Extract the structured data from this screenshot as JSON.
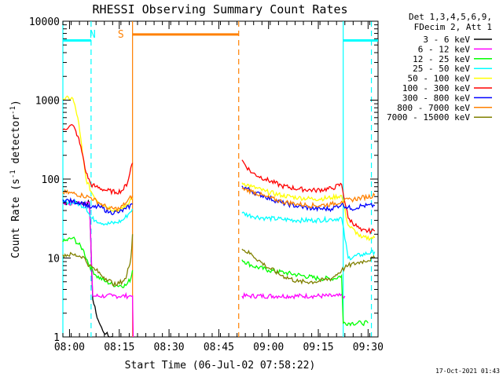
{
  "chart_data": {
    "type": "line",
    "title": "RHESSI Observing Summary Count Rates",
    "xlabel": "Start Time (06-Jul-02 07:58:22)",
    "ylabel": "Count Rate (s",
    "ylabel_sup1": "-1",
    "ylabel_mid": " detector",
    "ylabel_sup2": "-1",
    "ylabel_end": ")",
    "yscale": "log",
    "ylim": [
      1,
      10000
    ],
    "yticks": [
      1,
      10,
      100,
      1000,
      10000
    ],
    "ytick_labels": [
      "1",
      "10",
      "100",
      "1000",
      "10000"
    ],
    "xlim_min": [
      0,
      95
    ],
    "xticks_min": [
      2,
      17,
      32,
      47,
      62,
      77,
      92
    ],
    "xtick_labels": [
      "08:00",
      "08:15",
      "08:30",
      "08:45",
      "09:00",
      "09:15",
      "09:30"
    ],
    "legend_header": [
      "Det 1,3,4,5,6,9,",
      "FDecim 2, Att 1"
    ],
    "series": [
      {
        "name": "3 - 6 keV",
        "color": "#000000",
        "x": [
          0,
          8,
          9,
          10,
          11,
          12,
          13,
          14,
          15
        ],
        "y": [
          50,
          50,
          3,
          2,
          1.5,
          1.2,
          1.1,
          1.0,
          1.0
        ]
      },
      {
        "name": "6 - 12 keV",
        "color": "#ff00ff",
        "x": [
          0,
          8,
          9,
          13,
          15,
          20,
          21,
          21.2,
          54,
          56,
          65,
          75,
          82,
          85
        ],
        "y": [
          50,
          50,
          3.3,
          3.3,
          3.3,
          3.3,
          3.3,
          1.0,
          3.3,
          3.3,
          3.3,
          3.3,
          3.3,
          3.3
        ]
      },
      {
        "name": "12 - 25 keV",
        "color": "#00ff00",
        "x": [
          0,
          3,
          6,
          8,
          10,
          13,
          16,
          19,
          20.5,
          21,
          54,
          57,
          62,
          67,
          72,
          77,
          82,
          84,
          84.5,
          87,
          90,
          92
        ],
        "y": [
          16,
          18,
          13,
          8,
          6,
          5,
          4.5,
          4.5,
          5.5,
          7,
          9.5,
          8,
          7,
          6.5,
          6,
          5.5,
          5.5,
          6,
          1.5,
          1.5,
          1.5,
          1.5
        ]
      },
      {
        "name": "25 - 50 keV",
        "color": "#00ffff",
        "x": [
          0,
          4,
          7,
          8.5,
          10,
          13,
          16,
          18,
          20,
          21,
          54,
          57,
          61,
          66,
          71,
          76,
          81,
          84,
          86,
          90,
          94
        ],
        "y": [
          52,
          50,
          44,
          32,
          30,
          27,
          28,
          30,
          37,
          42,
          37,
          34,
          32,
          31,
          30,
          30,
          31,
          32,
          10,
          11,
          12
        ]
      },
      {
        "name": "50 - 100 keV",
        "color": "#ffff00",
        "x": [
          0,
          3,
          4.5,
          6,
          7,
          8.5,
          10,
          13,
          16,
          18,
          20,
          21,
          54,
          57,
          61,
          66,
          71,
          76,
          81,
          84,
          86,
          89,
          90,
          94
        ],
        "y": [
          1050,
          1050,
          600,
          200,
          100,
          70,
          55,
          45,
          40,
          42,
          50,
          58,
          90,
          80,
          70,
          62,
          58,
          56,
          58,
          62,
          26,
          20,
          18,
          18
        ]
      },
      {
        "name": "100 - 300 keV",
        "color": "#ff0000",
        "x": [
          0,
          2,
          3,
          4.5,
          6,
          7,
          8.5,
          10,
          13,
          16,
          18,
          19.5,
          20.5,
          21,
          54,
          55,
          57,
          61,
          66,
          71,
          76,
          81,
          84,
          86,
          90,
          94
        ],
        "y": [
          420,
          470,
          480,
          350,
          200,
          120,
          85,
          80,
          72,
          68,
          72,
          90,
          140,
          160,
          175,
          150,
          120,
          100,
          82,
          75,
          72,
          76,
          86,
          32,
          22,
          22
        ]
      },
      {
        "name": "300 - 800 keV",
        "color": "#0000ff",
        "x": [
          0,
          3,
          6,
          8.5,
          11,
          14,
          17,
          19,
          21,
          54,
          57,
          61,
          66,
          71,
          76,
          81,
          84,
          87,
          90,
          94
        ],
        "y": [
          55,
          52,
          50,
          43,
          45,
          38,
          38,
          42,
          48,
          82,
          70,
          60,
          50,
          45,
          42,
          42,
          48,
          42,
          46,
          46
        ]
      },
      {
        "name": "800 - 7000 keV",
        "color": "#ff8000",
        "x": [
          0,
          3,
          6,
          8.5,
          11,
          14,
          17,
          19,
          21,
          54,
          57,
          61,
          66,
          71,
          76,
          81,
          84,
          87,
          90,
          94
        ],
        "y": [
          68,
          66,
          62,
          58,
          50,
          42,
          42,
          50,
          62,
          75,
          70,
          60,
          52,
          48,
          46,
          48,
          52,
          55,
          58,
          62
        ]
      },
      {
        "name": "7000 - 15000 keV",
        "color": "#808000",
        "x": [
          0,
          3,
          6,
          8,
          10,
          13,
          16,
          19,
          20.5,
          21,
          54,
          57,
          61,
          66,
          71,
          76,
          81,
          84,
          86,
          90,
          94
        ],
        "y": [
          11,
          11,
          10.5,
          8,
          7,
          5.5,
          4.5,
          5.5,
          10,
          20,
          13,
          11,
          8,
          6,
          5,
          5,
          5.5,
          7,
          8,
          9,
          10
        ]
      }
    ],
    "annotations": [
      {
        "label": "N",
        "color": "#00ffff",
        "x_min": 9,
        "style": "vertical-label"
      },
      {
        "label": "S",
        "color": "#ff8000",
        "x_min": 17.5,
        "style": "vertical-label"
      }
    ],
    "vertical_markers": [
      {
        "x_min": 0,
        "color": "#00ffff",
        "dash": "solid"
      },
      {
        "x_min": 8.5,
        "color": "#00ffff",
        "dash": "dashed"
      },
      {
        "x_min": 21,
        "color": "#ff8000",
        "dash": "solid"
      },
      {
        "x_min": 53,
        "color": "#ff8000",
        "dash": "dashed"
      },
      {
        "x_min": 84.5,
        "color": "#00ffff",
        "dash": "solid"
      },
      {
        "x_min": 93,
        "color": "#00ffff",
        "dash": "dashed"
      }
    ],
    "flag_bars": [
      {
        "color": "#00ffff",
        "x_min": [
          0,
          8.5
        ],
        "y": 5700
      },
      {
        "color": "#ff8000",
        "x_min": [
          21,
          53
        ],
        "y": 6800
      },
      {
        "color": "#00ffff",
        "x_min": [
          84.5,
          95
        ],
        "y": 5700
      }
    ],
    "timestamp": "17-Oct-2021 01:43"
  }
}
